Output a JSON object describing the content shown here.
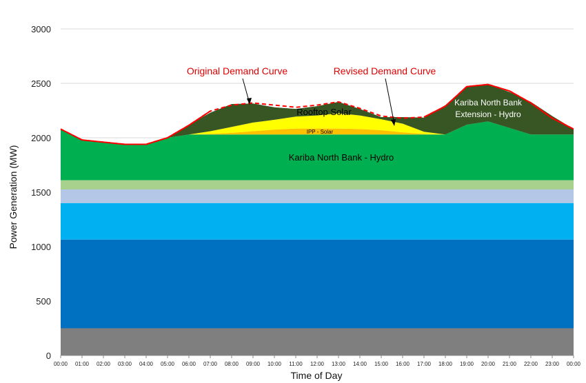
{
  "chart_data": {
    "type": "area",
    "title": "",
    "xlabel": "Time of Day",
    "ylabel": "Power Generation (MW)",
    "ylim": [
      0,
      3000
    ],
    "yticks": [
      0,
      500,
      1000,
      1500,
      2000,
      2500,
      3000
    ],
    "grid": "horizontal",
    "x": [
      "00:00",
      "01:00",
      "02:00",
      "03:00",
      "04:00",
      "05:00",
      "06:00",
      "07:00",
      "08:00",
      "09:00",
      "10:00",
      "11:00",
      "12:00",
      "13:00",
      "14:00",
      "15:00",
      "16:00",
      "17:00",
      "18:00",
      "19:00",
      "20:00",
      "21:00",
      "22:00",
      "23:00",
      "00:00"
    ],
    "stacked_series": [
      {
        "name": "",
        "color": "#7f7f7f",
        "values": [
          250,
          250,
          250,
          250,
          250,
          250,
          250,
          250,
          250,
          250,
          250,
          250,
          250,
          250,
          250,
          250,
          250,
          250,
          250,
          250,
          250,
          250,
          250,
          250,
          250
        ]
      },
      {
        "name": "",
        "color": "#0070c0",
        "values": [
          815,
          815,
          815,
          815,
          815,
          815,
          815,
          815,
          815,
          815,
          815,
          815,
          815,
          815,
          815,
          815,
          815,
          815,
          815,
          815,
          815,
          815,
          815,
          815,
          815
        ]
      },
      {
        "name": "",
        "color": "#00b0f0",
        "values": [
          335,
          335,
          335,
          335,
          335,
          335,
          335,
          335,
          335,
          335,
          335,
          335,
          335,
          335,
          335,
          335,
          335,
          335,
          335,
          335,
          335,
          335,
          335,
          335,
          335
        ]
      },
      {
        "name": "",
        "color": "#b4c7e7",
        "values": [
          125,
          125,
          125,
          125,
          125,
          125,
          125,
          125,
          125,
          125,
          125,
          125,
          125,
          125,
          125,
          125,
          125,
          125,
          125,
          125,
          125,
          125,
          125,
          125,
          125
        ]
      },
      {
        "name": "",
        "color": "#a9d18e",
        "values": [
          85,
          85,
          85,
          85,
          85,
          85,
          85,
          85,
          85,
          85,
          85,
          85,
          85,
          85,
          85,
          85,
          85,
          85,
          85,
          85,
          85,
          85,
          85,
          85,
          85
        ]
      },
      {
        "name": "Kariba North Bank - Hydro",
        "color": "#00b050",
        "values": [
          470,
          370,
          350,
          330,
          330,
          390,
          420,
          420,
          420,
          420,
          420,
          420,
          420,
          420,
          420,
          420,
          420,
          420,
          420,
          510,
          540,
          480,
          420,
          420,
          420
        ]
      },
      {
        "name": "IPP - Solar",
        "color": "#ffc000",
        "values": [
          0,
          0,
          0,
          0,
          0,
          0,
          0,
          5,
          15,
          30,
          45,
          55,
          55,
          55,
          50,
          40,
          20,
          5,
          0,
          0,
          0,
          0,
          0,
          0,
          0
        ]
      },
      {
        "name": "Rooftop Solar",
        "color": "#ffff00",
        "values": [
          0,
          0,
          0,
          0,
          0,
          0,
          0,
          25,
          55,
          80,
          90,
          110,
          120,
          140,
          125,
          100,
          80,
          20,
          0,
          0,
          0,
          0,
          0,
          0,
          0
        ]
      },
      {
        "name": "Kariba North Bank Extension - Hydro",
        "color": "#375623",
        "values": [
          0,
          0,
          0,
          0,
          0,
          0,
          90,
          170,
          210,
          175,
          115,
          70,
          85,
          105,
          60,
          20,
          60,
          130,
          270,
          355,
          340,
          330,
          300,
          170,
          50
        ]
      }
    ],
    "lines": [
      {
        "name": "Original Demand Curve",
        "color": "#ff0000",
        "style": "dashed",
        "values": [
          2080,
          1980,
          1960,
          1940,
          1940,
          2000,
          2115,
          2245,
          2300,
          2320,
          2300,
          2280,
          2300,
          2330,
          2270,
          2200,
          2180,
          2190,
          2290,
          2470,
          2490,
          2430,
          2320,
          2180,
          2080
        ]
      },
      {
        "name": "Revised Demand Curve",
        "color": "#ff0000",
        "style": "solid",
        "values": [
          2080,
          1980,
          1960,
          1940,
          1940,
          2000,
          2115,
          2245,
          null,
          null,
          null,
          null,
          null,
          null,
          null,
          null,
          null,
          2190,
          2290,
          2470,
          2490,
          2430,
          2320,
          2180,
          2080
        ]
      }
    ],
    "annotations": {
      "original_demand": "Original Demand Curve",
      "revised_demand": "Revised Demand Curve",
      "rooftop_solar": "Rooftop Solar",
      "ipp_solar": "IPP - Solar",
      "kariba_north": "Kariba North Bank - Hydro",
      "kariba_ext_line1": "Kariba North Bank",
      "kariba_ext_line2": "Extension - Hydro"
    }
  }
}
